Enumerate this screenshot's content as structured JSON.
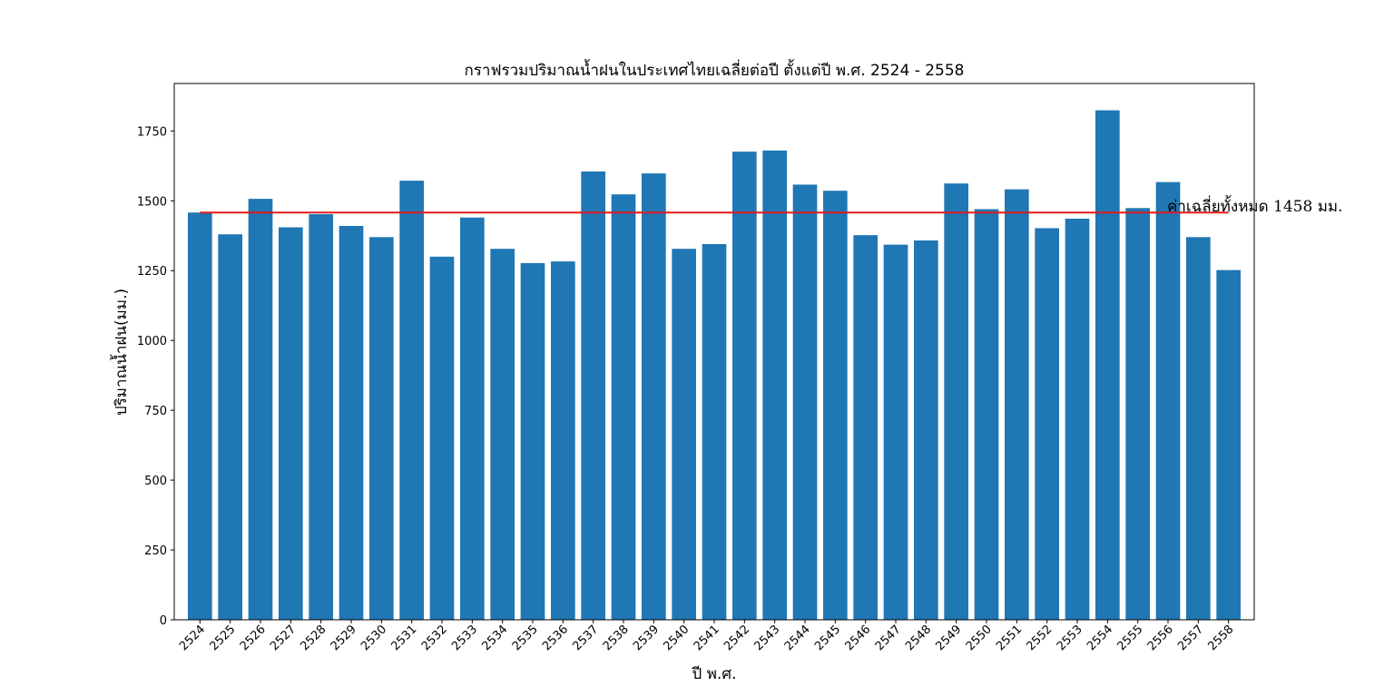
{
  "chart_data": {
    "type": "bar",
    "title": "กราฟรวมปริมาณน้ำฝนในประเทศไทยเฉลี่ยต่อปี ตั้งแต่ปี พ.ศ. 2524 - 2558",
    "xlabel": "ปี พ.ศ.",
    "ylabel": "ปริมาณน้ำฝน(มม.)",
    "categories": [
      "2524",
      "2525",
      "2526",
      "2527",
      "2528",
      "2529",
      "2530",
      "2531",
      "2532",
      "2533",
      "2534",
      "2535",
      "2536",
      "2537",
      "2538",
      "2539",
      "2540",
      "2541",
      "2542",
      "2543",
      "2544",
      "2545",
      "2546",
      "2547",
      "2548",
      "2549",
      "2550",
      "2551",
      "2552",
      "2553",
      "2554",
      "2555",
      "2556",
      "2557",
      "2558"
    ],
    "values": [
      1458,
      1380,
      1507,
      1405,
      1452,
      1410,
      1370,
      1572,
      1300,
      1440,
      1328,
      1277,
      1283,
      1605,
      1523,
      1598,
      1328,
      1345,
      1676,
      1680,
      1558,
      1536,
      1377,
      1343,
      1358,
      1562,
      1470,
      1541,
      1402,
      1436,
      1824,
      1474,
      1567,
      1370,
      1252
    ],
    "ylim": [
      0,
      1920
    ],
    "yticks": [
      0,
      250,
      500,
      750,
      1000,
      1250,
      1500,
      1750
    ],
    "bar_color": "#1f77b4",
    "average": {
      "value": 1458,
      "color": "#e41a1c",
      "label": "ค่าเฉลี่ยทั้งหมด 1458 มม."
    },
    "grid": false,
    "legend": "none"
  }
}
